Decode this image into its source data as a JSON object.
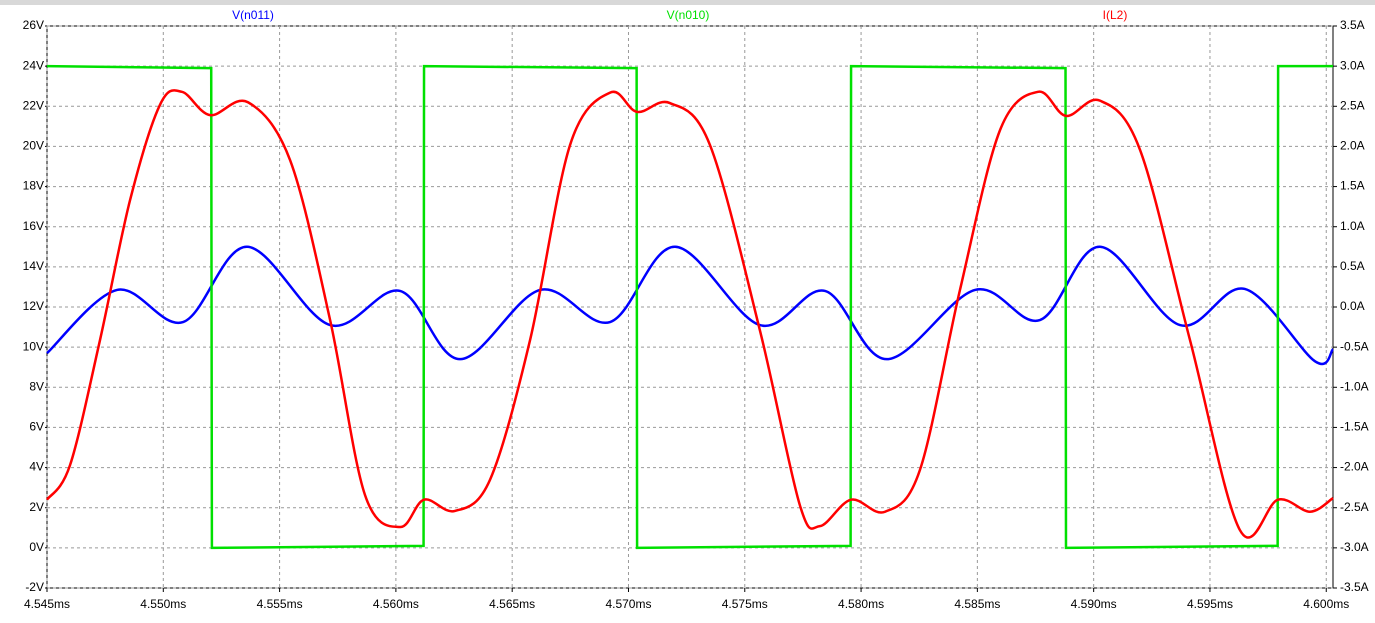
{
  "chart_data": {
    "type": "line",
    "xlim": [
      4.545,
      4.60029
    ],
    "xticks": [
      {
        "value": 4.545,
        "label": "4.545ms"
      },
      {
        "value": 4.55,
        "label": "4.550ms"
      },
      {
        "value": 4.555,
        "label": "4.555ms"
      },
      {
        "value": 4.56,
        "label": "4.560ms"
      },
      {
        "value": 4.565,
        "label": "4.565ms"
      },
      {
        "value": 4.57,
        "label": "4.570ms"
      },
      {
        "value": 4.575,
        "label": "4.575ms"
      },
      {
        "value": 4.58,
        "label": "4.580ms"
      },
      {
        "value": 4.585,
        "label": "4.585ms"
      },
      {
        "value": 4.59,
        "label": "4.590ms"
      },
      {
        "value": 4.595,
        "label": "4.595ms"
      },
      {
        "value": 4.6,
        "label": "4.600ms"
      }
    ],
    "ylim": [
      -2,
      26
    ],
    "yticks": [
      {
        "value": -2,
        "label": "-2V"
      },
      {
        "value": 0,
        "label": "0V"
      },
      {
        "value": 2,
        "label": "2V"
      },
      {
        "value": 4,
        "label": "4V"
      },
      {
        "value": 6,
        "label": "6V"
      },
      {
        "value": 8,
        "label": "8V"
      },
      {
        "value": 10,
        "label": "10V"
      },
      {
        "value": 12,
        "label": "12V"
      },
      {
        "value": 14,
        "label": "14V"
      },
      {
        "value": 16,
        "label": "16V"
      },
      {
        "value": 18,
        "label": "18V"
      },
      {
        "value": 20,
        "label": "20V"
      },
      {
        "value": 22,
        "label": "22V"
      },
      {
        "value": 24,
        "label": "24V"
      },
      {
        "value": 26,
        "label": "26V"
      }
    ],
    "y2lim": [
      -3.5,
      3.5
    ],
    "y2ticks": [
      {
        "value": -3.5,
        "label": "-3.5A"
      },
      {
        "value": -3.0,
        "label": "-3.0A"
      },
      {
        "value": -2.5,
        "label": "-2.5A"
      },
      {
        "value": -2.0,
        "label": "-2.0A"
      },
      {
        "value": -1.5,
        "label": "-1.5A"
      },
      {
        "value": -1.0,
        "label": "-1.0A"
      },
      {
        "value": -0.5,
        "label": "-0.5A"
      },
      {
        "value": 0,
        "label": "0.0A"
      },
      {
        "value": 0.5,
        "label": "0.5A"
      },
      {
        "value": 1.0,
        "label": "1.0A"
      },
      {
        "value": 1.5,
        "label": "1.5A"
      },
      {
        "value": 2.0,
        "label": "2.0A"
      },
      {
        "value": 2.5,
        "label": "2.5A"
      },
      {
        "value": 3.0,
        "label": "3.0A"
      },
      {
        "value": 3.5,
        "label": "3.5A"
      }
    ],
    "grid": true,
    "series": [
      {
        "name": "V(n011)",
        "color": "#0000ff",
        "smooth": true,
        "x": [
          4.545,
          4.54801,
          4.55085,
          4.5536,
          4.55717,
          4.56018,
          4.56276,
          4.5662,
          4.56921,
          4.572,
          4.57565,
          4.57845,
          4.58111,
          4.5849,
          4.58769,
          4.59027,
          4.59371,
          4.5965,
          4.59951,
          4.60029
        ],
        "values": [
          9.7,
          12.85,
          11.25,
          15.0,
          11.1,
          12.8,
          9.4,
          12.85,
          11.25,
          15.0,
          11.1,
          12.8,
          9.4,
          12.85,
          11.35,
          15.0,
          11.1,
          12.9,
          9.3,
          9.9
        ]
      },
      {
        "name": "V(n010)",
        "color": "#00e000",
        "smooth": false,
        "x": [
          4.545,
          4.55206,
          4.55209,
          4.56119,
          4.56121,
          4.57035,
          4.57037,
          4.57955,
          4.57957,
          4.58879,
          4.58881,
          4.59791,
          4.59793,
          4.60029
        ],
        "values": [
          24,
          23.9,
          0,
          0.1,
          24,
          23.9,
          0,
          0.1,
          24,
          23.9,
          0,
          0.1,
          24,
          24
        ]
      },
      {
        "name": "I(L2)",
        "color": "#ff0000",
        "smooth": true,
        "axis": "y2",
        "x": [
          4.545,
          4.54599,
          4.54728,
          4.54857,
          4.54986,
          4.5508,
          4.55201,
          4.55364,
          4.55545,
          4.55717,
          4.55867,
          4.56018,
          4.56121,
          4.56254,
          4.56405,
          4.56577,
          4.56749,
          4.56921,
          4.57037,
          4.57178,
          4.5735,
          4.57565,
          4.57737,
          4.57823,
          4.57957,
          4.58103,
          4.58253,
          4.58425,
          4.58597,
          4.58761,
          4.58881,
          4.59027,
          4.59199,
          4.59414,
          4.59629,
          4.59792,
          4.5993,
          4.60029
        ],
        "values": [
          -2.4,
          -1.97,
          -0.41,
          1.33,
          2.52,
          2.68,
          2.39,
          2.55,
          1.83,
          -0.16,
          -2.34,
          -2.74,
          -2.4,
          -2.54,
          -2.15,
          -0.41,
          2.02,
          2.67,
          2.43,
          2.54,
          2.02,
          -0.29,
          -2.47,
          -2.73,
          -2.4,
          -2.55,
          -2.03,
          0.21,
          2.2,
          2.68,
          2.38,
          2.57,
          1.96,
          -0.41,
          -2.78,
          -2.4,
          -2.55,
          -2.38
        ]
      }
    ]
  }
}
